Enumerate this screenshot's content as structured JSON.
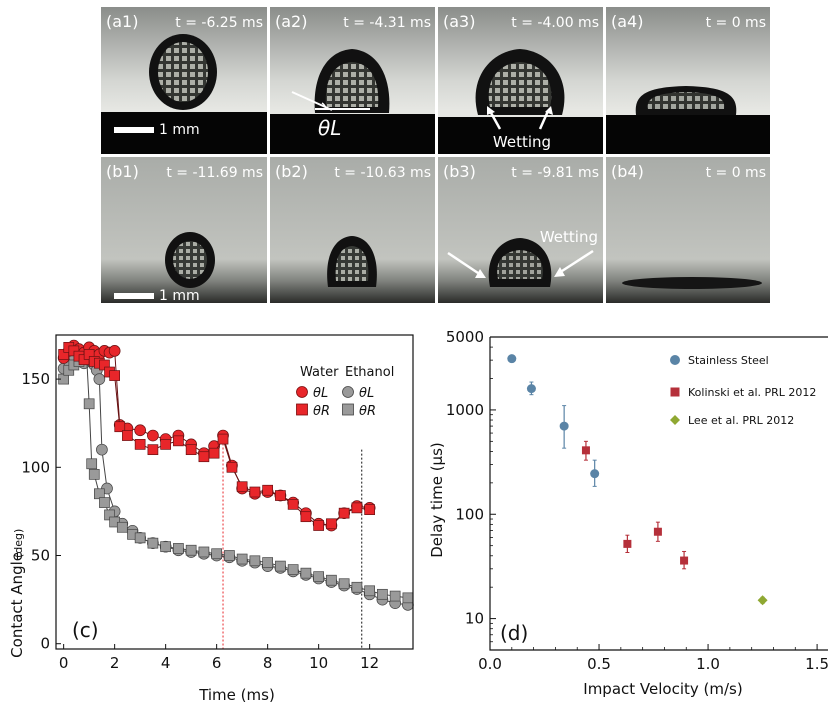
{
  "photo_panels": {
    "row_a": [
      {
        "tag": "(a1)",
        "time": "t = -6.25 ms",
        "scale_label": "1 mm"
      },
      {
        "tag": "(a2)",
        "time": "t = -4.31 ms",
        "angle_label": "θL"
      },
      {
        "tag": "(a3)",
        "time": "t = -4.00 ms",
        "wetting_label": "Wetting"
      },
      {
        "tag": "(a4)",
        "time": "t = 0 ms"
      }
    ],
    "row_b": [
      {
        "tag": "(b1)",
        "time": "t = -11.69 ms",
        "scale_label": "1 mm"
      },
      {
        "tag": "(b2)",
        "time": "t = -10.63 ms"
      },
      {
        "tag": "(b3)",
        "time": "t = -9.81 ms",
        "wetting_label": "Wetting"
      },
      {
        "tag": "(b4)",
        "time": "t = 0 ms"
      }
    ]
  },
  "chart_data": [
    {
      "type": "scatter",
      "panel_label": "(c)",
      "xlabel": "Time (ms)",
      "ylabel": "Contact Angle",
      "ylabel_unit": "(deg)",
      "xlim": [
        -0.3,
        13.7
      ],
      "ylim": [
        -3,
        175
      ],
      "xticks": [
        0,
        2,
        4,
        6,
        8,
        10,
        12
      ],
      "yticks": [
        0,
        50,
        100,
        150
      ],
      "legend": {
        "position": "top-right",
        "group_titles": [
          "Water",
          "Ethanol"
        ],
        "entries": [
          "θL",
          "θR",
          "θL",
          "θR"
        ]
      },
      "vertical_markers": [
        {
          "x": 6.25,
          "color": "#e8262a"
        },
        {
          "x": 11.69,
          "color": "#111111"
        }
      ],
      "series": [
        {
          "group": "Water",
          "angle": "θL",
          "marker": "circle",
          "color": "#e8262a",
          "x": [
            0.0,
            0.2,
            0.4,
            0.6,
            0.8,
            1.0,
            1.2,
            1.4,
            1.6,
            1.8,
            2.0,
            2.2,
            2.5,
            3.0,
            3.5,
            4.0,
            4.5,
            5.0,
            5.5,
            5.9,
            6.25,
            6.6,
            7.0,
            7.5,
            8.0,
            8.5,
            9.0,
            9.5,
            10.0,
            10.5,
            11.0,
            11.5,
            12.0
          ],
          "y": [
            162,
            166,
            169,
            167,
            165,
            168,
            166,
            164,
            166,
            165,
            166,
            124,
            122,
            121,
            118,
            116,
            118,
            113,
            108,
            112,
            118,
            101,
            88,
            85,
            86,
            84,
            80,
            74,
            68,
            67,
            74,
            78,
            77
          ]
        },
        {
          "group": "Water",
          "angle": "θR",
          "marker": "square",
          "color": "#e8262a",
          "x": [
            0.0,
            0.2,
            0.4,
            0.6,
            0.8,
            1.0,
            1.2,
            1.4,
            1.6,
            1.8,
            2.0,
            2.2,
            2.5,
            3.0,
            3.5,
            4.0,
            4.5,
            5.0,
            5.5,
            5.9,
            6.25,
            6.6,
            7.0,
            7.5,
            8.0,
            8.5,
            9.0,
            9.5,
            10.0,
            10.5,
            11.0,
            11.5,
            12.0
          ],
          "y": [
            164,
            168,
            166,
            163,
            161,
            164,
            160,
            159,
            158,
            154,
            152,
            123,
            118,
            113,
            110,
            113,
            115,
            110,
            106,
            108,
            116,
            100,
            89,
            86,
            87,
            84,
            79,
            72,
            67,
            68,
            74,
            77,
            76
          ]
        },
        {
          "group": "Ethanol",
          "angle": "θL",
          "marker": "circle",
          "color": "#9a9a9a",
          "x": [
            0.0,
            0.2,
            0.4,
            0.6,
            0.8,
            1.0,
            1.1,
            1.2,
            1.3,
            1.4,
            1.5,
            1.7,
            2.0,
            2.3,
            2.7,
            3.0,
            3.5,
            4.0,
            4.5,
            5.0,
            5.5,
            6.0,
            6.5,
            7.0,
            7.5,
            8.0,
            8.5,
            9.0,
            9.5,
            10.0,
            10.5,
            11.0,
            11.5,
            12.0,
            12.5,
            13.0,
            13.5
          ],
          "y": [
            156,
            160,
            163,
            160,
            159,
            161,
            160,
            158,
            155,
            150,
            110,
            88,
            75,
            68,
            64,
            60,
            57,
            55,
            53,
            52,
            51,
            50,
            49,
            47,
            46,
            44,
            43,
            41,
            39,
            37,
            35,
            33,
            31,
            28,
            25,
            23,
            22
          ]
        },
        {
          "group": "Ethanol",
          "angle": "θR",
          "marker": "square",
          "color": "#9a9a9a",
          "x": [
            0.0,
            0.2,
            0.4,
            0.6,
            0.8,
            0.9,
            1.0,
            1.1,
            1.2,
            1.4,
            1.6,
            1.8,
            2.0,
            2.3,
            2.7,
            3.0,
            3.5,
            4.0,
            4.5,
            5.0,
            5.5,
            6.0,
            6.5,
            7.0,
            7.5,
            8.0,
            8.5,
            9.0,
            9.5,
            10.0,
            10.5,
            11.0,
            11.5,
            12.0,
            12.5,
            13.0,
            13.5
          ],
          "y": [
            150,
            155,
            158,
            160,
            162,
            163,
            136,
            102,
            96,
            85,
            80,
            73,
            69,
            66,
            62,
            60,
            57,
            55,
            54,
            53,
            52,
            51,
            50,
            48,
            47,
            46,
            44,
            42,
            40,
            38,
            36,
            34,
            32,
            30,
            28,
            27,
            26
          ]
        }
      ]
    },
    {
      "type": "scatter",
      "panel_label": "(d)",
      "xlabel": "Impact Velocity (m/s)",
      "ylabel": "Delay time (μs)",
      "xlim": [
        0.0,
        1.55
      ],
      "ylim": [
        5,
        5000
      ],
      "log_y": true,
      "xticks": [
        0.0,
        0.5,
        1.0,
        1.5
      ],
      "xtick_labels": [
        "0.0",
        "0.5",
        "1.0",
        "1.5"
      ],
      "yticks": [
        10,
        100,
        1000,
        5000
      ],
      "ytick_labels": [
        "10",
        "100",
        "1000",
        "5000"
      ],
      "legend": {
        "position": "top-right"
      },
      "series": [
        {
          "name": "Stainless Steel",
          "marker": "circle",
          "color": "#5a84a6",
          "x": [
            0.1,
            0.19,
            0.34,
            0.48
          ],
          "y": [
            3100,
            1600,
            700,
            245
          ],
          "err_low": [
            2900,
            1400,
            430,
            185
          ],
          "err_high": [
            3300,
            1850,
            1100,
            330
          ]
        },
        {
          "name": "Kolinski et al. PRL 2012",
          "marker": "square",
          "color": "#b5303a",
          "x": [
            0.44,
            0.63,
            0.77,
            0.89
          ],
          "y": [
            410,
            52,
            68,
            36
          ],
          "err_low": [
            330,
            43,
            55,
            30
          ],
          "err_high": [
            500,
            63,
            84,
            44
          ]
        },
        {
          "name": "Lee et al. PRL 2012",
          "marker": "diamond",
          "color": "#8fa832",
          "x": [
            1.25
          ],
          "y": [
            15
          ],
          "err_low": [
            14
          ],
          "err_high": [
            16
          ]
        }
      ]
    }
  ]
}
